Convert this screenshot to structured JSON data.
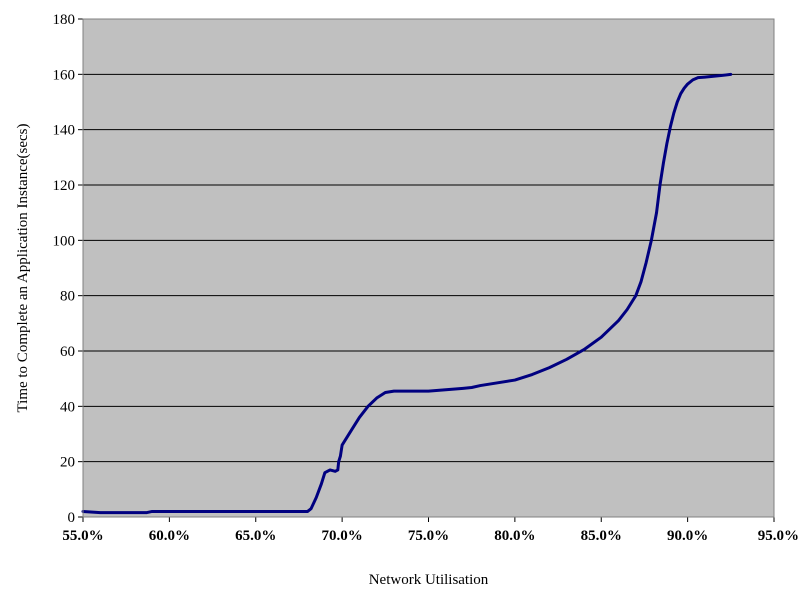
{
  "chart_data": {
    "type": "line",
    "title": "",
    "xlabel": "Network  Utilisation",
    "ylabel": "Time to Complete an Application Instance(secs)",
    "xlim": [
      55.0,
      95.0
    ],
    "ylim": [
      0,
      180
    ],
    "x_ticks": [
      55,
      60,
      65,
      70,
      75,
      80,
      85,
      90,
      95
    ],
    "x_tick_labels": [
      "55.0%",
      "60.0%",
      "65.0%",
      "70.0%",
      "75.0%",
      "80.0%",
      "85.0%",
      "90.0%",
      "95.0%"
    ],
    "y_ticks": [
      0,
      20,
      40,
      60,
      80,
      100,
      120,
      140,
      160,
      180
    ],
    "y_tick_labels": [
      "0",
      "20",
      "40",
      "60",
      "80",
      "100",
      "120",
      "140",
      "160",
      "180"
    ],
    "grid": {
      "horizontal": true,
      "vertical": false
    },
    "legend": "none",
    "colors": {
      "plot_background": "#c0c0c0",
      "gridline": "#000000",
      "series_line": "#000080",
      "page_background": "#ffffff"
    },
    "series": [
      {
        "x": [
          55.0,
          56.0,
          58.0,
          58.7,
          59.0,
          60.0,
          62.0,
          64.0,
          66.0,
          67.5,
          68.0,
          68.2,
          68.5,
          68.8,
          69.0,
          69.3,
          69.6,
          69.75,
          69.8,
          69.9,
          70.0,
          70.5,
          71.0,
          71.5,
          72.0,
          72.5,
          73.0,
          73.5,
          74.0,
          75.0,
          76.0,
          77.0,
          77.5,
          78.0,
          79.0,
          80.0,
          81.0,
          82.0,
          83.0,
          84.0,
          85.0,
          86.0,
          86.5,
          87.0,
          87.3,
          87.6,
          87.9,
          88.2,
          88.4,
          88.6,
          88.8,
          89.0,
          89.2,
          89.4,
          89.6,
          89.8,
          90.0,
          90.3,
          90.6,
          91.0,
          91.5,
          92.0,
          92.5
        ],
        "y": [
          2,
          1.6,
          1.6,
          1.6,
          2,
          2,
          2,
          2,
          2,
          2,
          2,
          3,
          7,
          12,
          16,
          17,
          16.5,
          17,
          20,
          22,
          26,
          31,
          36,
          40,
          43,
          45,
          45.5,
          45.5,
          45.5,
          45.5,
          46,
          46.5,
          46.8,
          47.5,
          48.5,
          49.5,
          51.5,
          54,
          57,
          60.5,
          65,
          71,
          75,
          80,
          85,
          92,
          100,
          110,
          120,
          128,
          135,
          141,
          146,
          150,
          153,
          155,
          156.5,
          158,
          158.8,
          159,
          159.3,
          159.6,
          160
        ]
      }
    ]
  }
}
